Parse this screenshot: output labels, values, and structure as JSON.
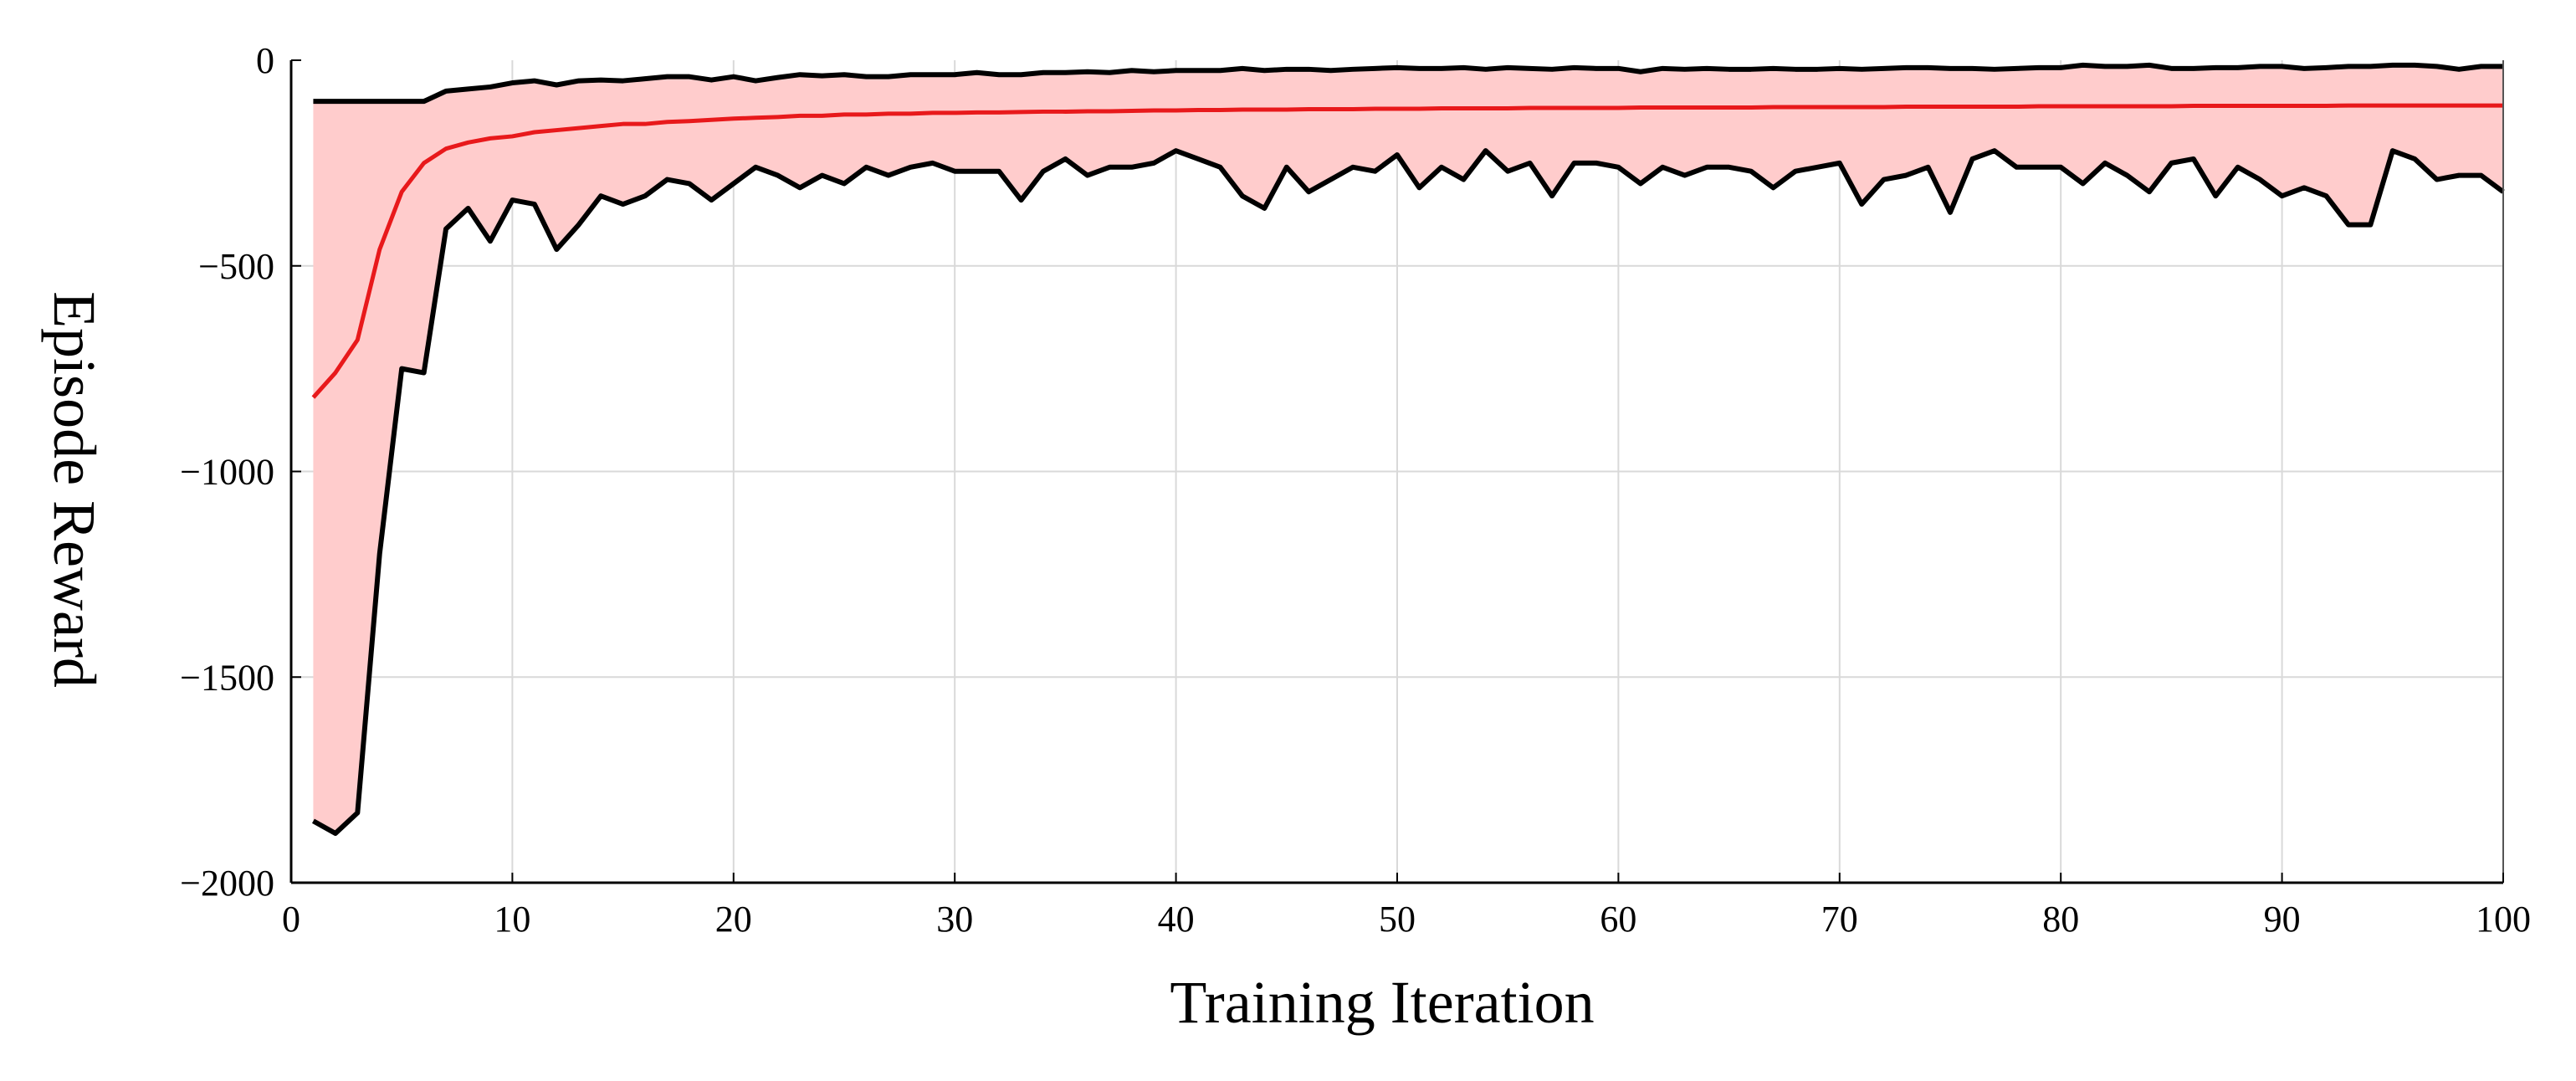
{
  "chart_data": {
    "type": "area",
    "title": "",
    "xlabel": "Training Iteration",
    "ylabel": "Episode Reward",
    "xlim": [
      0,
      100
    ],
    "ylim": [
      -2000,
      0
    ],
    "xticks": [
      0,
      10,
      20,
      30,
      40,
      50,
      60,
      70,
      80,
      90,
      100
    ],
    "yticks": [
      0,
      -500,
      -1000,
      -1500,
      -2000
    ],
    "xtick_labels": [
      "0",
      "10",
      "20",
      "30",
      "40",
      "50",
      "60",
      "70",
      "80",
      "90",
      "100"
    ],
    "ytick_labels": [
      "0",
      "−500",
      "−1000",
      "−1500",
      "−2000"
    ],
    "grid": true,
    "x": [
      1,
      2,
      3,
      4,
      5,
      6,
      7,
      8,
      9,
      10,
      11,
      12,
      13,
      14,
      15,
      16,
      17,
      18,
      19,
      20,
      21,
      22,
      23,
      24,
      25,
      26,
      27,
      28,
      29,
      30,
      31,
      32,
      33,
      34,
      35,
      36,
      37,
      38,
      39,
      40,
      41,
      42,
      43,
      44,
      45,
      46,
      47,
      48,
      49,
      50,
      51,
      52,
      53,
      54,
      55,
      56,
      57,
      58,
      59,
      60,
      61,
      62,
      63,
      64,
      65,
      66,
      67,
      68,
      69,
      70,
      71,
      72,
      73,
      74,
      75,
      76,
      77,
      78,
      79,
      80,
      81,
      82,
      83,
      84,
      85,
      86,
      87,
      88,
      89,
      90,
      91,
      92,
      93,
      94,
      95,
      96,
      97,
      98,
      99,
      100
    ],
    "series": [
      {
        "role": "max",
        "color": "#000000",
        "values": [
          -100,
          -100,
          -100,
          -100,
          -100,
          -100,
          -75,
          -70,
          -65,
          -55,
          -50,
          -60,
          -50,
          -48,
          -50,
          -45,
          -40,
          -40,
          -48,
          -40,
          -50,
          -42,
          -35,
          -38,
          -35,
          -40,
          -40,
          -35,
          -35,
          -35,
          -30,
          -35,
          -35,
          -30,
          -30,
          -28,
          -30,
          -25,
          -28,
          -25,
          -25,
          -25,
          -20,
          -25,
          -22,
          -22,
          -25,
          -22,
          -20,
          -18,
          -20,
          -20,
          -18,
          -22,
          -18,
          -20,
          -22,
          -18,
          -20,
          -20,
          -28,
          -20,
          -22,
          -20,
          -22,
          -22,
          -20,
          -22,
          -22,
          -20,
          -22,
          -20,
          -18,
          -18,
          -20,
          -20,
          -22,
          -20,
          -18,
          -18,
          -12,
          -15,
          -15,
          -12,
          -20,
          -20,
          -18,
          -18,
          -15,
          -15,
          -20,
          -18,
          -15,
          -15,
          -12,
          -12,
          -15,
          -22,
          -15,
          -15
        ]
      },
      {
        "role": "mean",
        "color": "#e8191b",
        "values": [
          -820,
          -760,
          -680,
          -460,
          -320,
          -250,
          -215,
          -200,
          -190,
          -185,
          -175,
          -170,
          -165,
          -160,
          -155,
          -155,
          -150,
          -148,
          -145,
          -142,
          -140,
          -138,
          -135,
          -135,
          -132,
          -132,
          -130,
          -130,
          -128,
          -128,
          -127,
          -127,
          -126,
          -125,
          -125,
          -124,
          -124,
          -123,
          -122,
          -122,
          -121,
          -121,
          -120,
          -120,
          -120,
          -119,
          -119,
          -119,
          -118,
          -118,
          -118,
          -117,
          -117,
          -117,
          -117,
          -116,
          -116,
          -116,
          -116,
          -116,
          -115,
          -115,
          -115,
          -115,
          -115,
          -115,
          -114,
          -114,
          -114,
          -114,
          -114,
          -114,
          -113,
          -113,
          -113,
          -113,
          -113,
          -113,
          -112,
          -112,
          -112,
          -112,
          -112,
          -112,
          -112,
          -111,
          -111,
          -111,
          -111,
          -111,
          -111,
          -111,
          -110,
          -110,
          -110,
          -110,
          -110,
          -110,
          -110,
          -110
        ]
      },
      {
        "role": "min",
        "color": "#000000",
        "values": [
          -1850,
          -1880,
          -1830,
          -1200,
          -750,
          -760,
          -410,
          -360,
          -440,
          -340,
          -350,
          -460,
          -400,
          -330,
          -350,
          -330,
          -290,
          -300,
          -340,
          -300,
          -260,
          -280,
          -310,
          -280,
          -300,
          -260,
          -280,
          -260,
          -250,
          -270,
          -270,
          -270,
          -340,
          -270,
          -240,
          -280,
          -260,
          -260,
          -250,
          -220,
          -240,
          -260,
          -330,
          -360,
          -260,
          -320,
          -290,
          -260,
          -270,
          -230,
          -310,
          -260,
          -290,
          -220,
          -270,
          -250,
          -330,
          -250,
          -250,
          -260,
          -300,
          -260,
          -280,
          -260,
          -260,
          -270,
          -310,
          -270,
          -260,
          -250,
          -350,
          -290,
          -280,
          -260,
          -370,
          -240,
          -220,
          -260,
          -260,
          -260,
          -300,
          -250,
          -280,
          -320,
          -250,
          -240,
          -330,
          -260,
          -290,
          -330,
          -310,
          -330,
          -400,
          -400,
          -220,
          -240,
          -290,
          -280,
          -280,
          -320
        ]
      }
    ],
    "band": {
      "between": [
        "min",
        "max"
      ],
      "color": "#ffcccc"
    }
  }
}
